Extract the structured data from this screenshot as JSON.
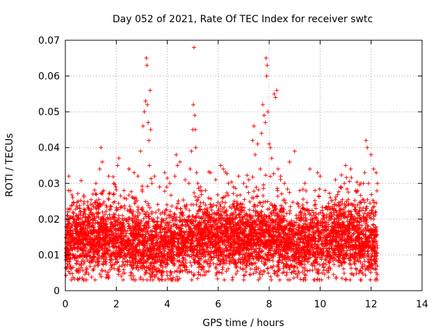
{
  "chart_data": {
    "type": "scatter",
    "title": "Day 052 of 2021, Rate Of TEC Index for receiver swtc",
    "xlabel": "GPS time / hours",
    "ylabel": "ROTI / TECUs",
    "xlim": [
      0,
      14
    ],
    "ylim": [
      0,
      0.07
    ],
    "x_ticks": [
      "0",
      "2",
      "4",
      "6",
      "8",
      "10",
      "12",
      "14"
    ],
    "y_ticks": [
      "0",
      "0.01",
      "0.02",
      "0.03",
      "0.04",
      "0.05",
      "0.06",
      "0.07"
    ],
    "grid": true,
    "marker": "+",
    "marker_color": "#ff0000",
    "series": [
      {
        "x": [
          0.05,
          0.1,
          0.12,
          0.15,
          0.3,
          0.5,
          0.8,
          1.0,
          1.2,
          1.35,
          1.4,
          1.45,
          1.5,
          1.7,
          1.9,
          2.05,
          2.1,
          2.3,
          2.5,
          2.7,
          2.85,
          2.95,
          3.05,
          3.1,
          3.15,
          3.18,
          3.2,
          3.22,
          3.25,
          3.28,
          3.3,
          3.33,
          3.35,
          3.4,
          3.5,
          3.7,
          3.9,
          4.1,
          4.3,
          4.35,
          4.4,
          4.5,
          4.7,
          4.85,
          4.9,
          4.95,
          5.0,
          5.02,
          5.05,
          5.08,
          5.1,
          5.12,
          5.15,
          5.2,
          5.3,
          5.5,
          5.7,
          5.9,
          6.1,
          6.2,
          6.4,
          6.6,
          6.8,
          7.0,
          7.2,
          7.35,
          7.4,
          7.45,
          7.55,
          7.65,
          7.7,
          7.75,
          7.8,
          7.85,
          7.88,
          7.9,
          7.92,
          7.95,
          8.0,
          8.05,
          8.1,
          8.2,
          8.25,
          8.3,
          8.35,
          8.45,
          8.6,
          8.8,
          9.0,
          9.2,
          9.4,
          9.6,
          9.8,
          9.9,
          10.0,
          10.2,
          10.4,
          10.6,
          10.8,
          10.95,
          11.0,
          11.2,
          11.4,
          11.6,
          11.7,
          11.75,
          11.8,
          11.85,
          11.9,
          12.0,
          12.1,
          12.2,
          12.25
        ],
        "y": [
          0.012,
          0.022,
          0.028,
          0.008,
          0.015,
          0.025,
          0.018,
          0.02,
          0.03,
          0.034,
          0.04,
          0.036,
          0.028,
          0.032,
          0.03,
          0.035,
          0.037,
          0.028,
          0.034,
          0.033,
          0.032,
          0.039,
          0.046,
          0.05,
          0.053,
          0.065,
          0.063,
          0.052,
          0.047,
          0.042,
          0.035,
          0.056,
          0.045,
          0.03,
          0.032,
          0.029,
          0.033,
          0.03,
          0.032,
          0.038,
          0.035,
          0.036,
          0.031,
          0.03,
          0.034,
          0.039,
          0.045,
          0.052,
          0.068,
          0.049,
          0.045,
          0.04,
          0.033,
          0.03,
          0.029,
          0.028,
          0.033,
          0.031,
          0.035,
          0.034,
          0.03,
          0.029,
          0.032,
          0.03,
          0.031,
          0.042,
          0.046,
          0.038,
          0.041,
          0.034,
          0.044,
          0.052,
          0.049,
          0.047,
          0.065,
          0.06,
          0.063,
          0.05,
          0.041,
          0.04,
          0.037,
          0.055,
          0.054,
          0.056,
          0.034,
          0.032,
          0.03,
          0.036,
          0.039,
          0.028,
          0.03,
          0.034,
          0.028,
          0.033,
          0.032,
          0.028,
          0.026,
          0.031,
          0.029,
          0.03,
          0.035,
          0.034,
          0.028,
          0.03,
          0.03,
          0.033,
          0.042,
          0.04,
          0.03,
          0.038,
          0.034,
          0.033,
          0.03
        ]
      }
    ]
  }
}
